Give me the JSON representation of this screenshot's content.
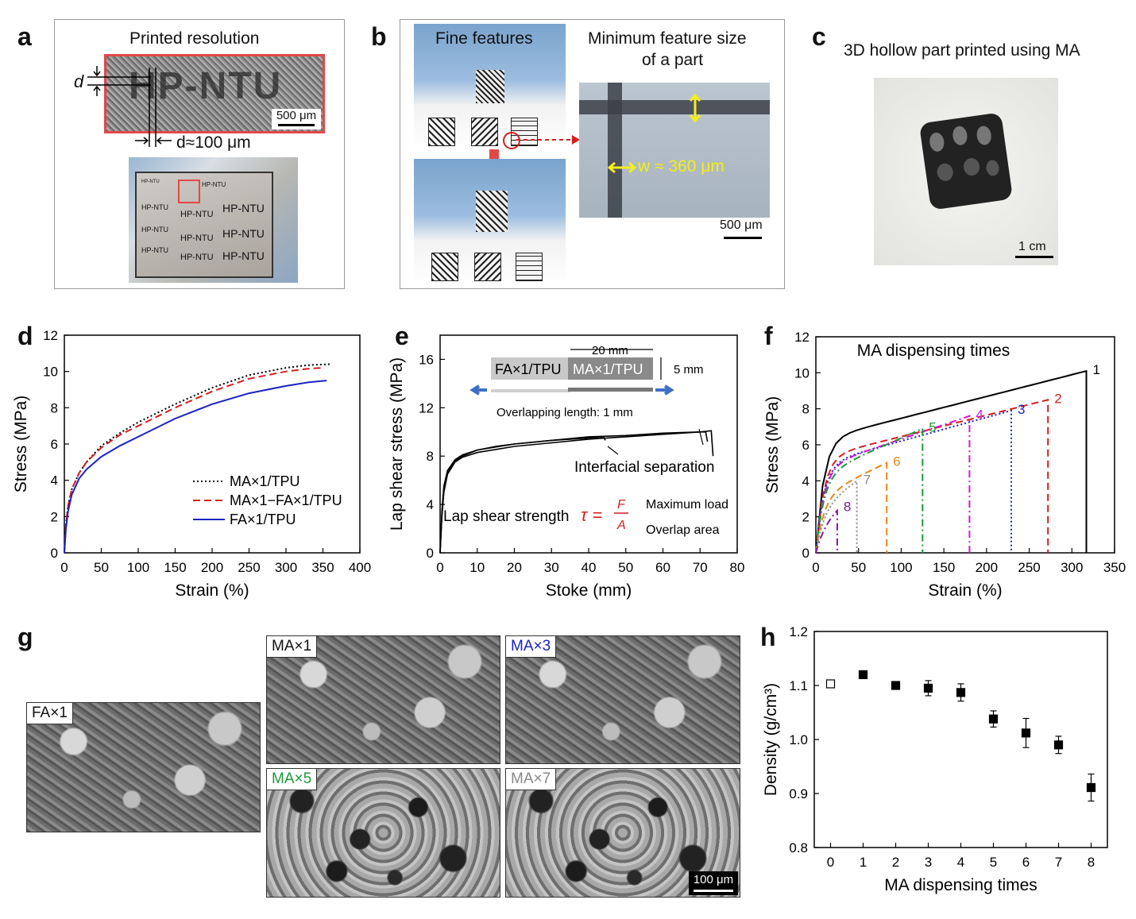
{
  "panel_letters": {
    "a": "a",
    "b": "b",
    "c": "c",
    "d": "d",
    "e": "e",
    "f": "f",
    "g": "g",
    "h": "h"
  },
  "panel_a": {
    "title": "Printed resolution",
    "d_label": "d",
    "scale_bar": "500 μm",
    "d_eq": "d≈100 μm",
    "print_text": "HP-NTU",
    "card_texts": [
      "HP-NTU",
      "HP-NTU",
      "HP-NTU",
      "HP-NTU",
      "HP-NTU",
      "HP-NTU",
      "HP-NTU",
      "HP-NTU",
      "HP-NTU",
      "HP-NTU",
      "HP-NTU"
    ]
  },
  "panel_b": {
    "fine_features": "Fine features",
    "min_feature_1": "Minimum feature size",
    "min_feature_2": "of a part",
    "w_label": "w ≈ 360 μm",
    "scale_bar": "500 μm"
  },
  "panel_c": {
    "title": "3D hollow part printed using MA",
    "scale_bar": "1 cm"
  },
  "panel_g": {
    "labels": [
      "FA×1",
      "MA×1",
      "MA×3",
      "MA×5",
      "MA×7"
    ],
    "scale_bar": "100 μm"
  },
  "colors": {
    "red": "#d42020",
    "blue": "#1a22c4",
    "green": "#1a9a3a",
    "magenta": "#d418d4",
    "orange": "#e8861a",
    "gray": "#8a8a8a",
    "purple": "#7a1a9a",
    "yellow": "#f5ee1a"
  },
  "chart_data": [
    {
      "id": "d",
      "type": "line",
      "xlabel": "Strain (%)",
      "ylabel": "Stress (MPa)",
      "xlim": [
        0,
        400
      ],
      "ylim": [
        0,
        12
      ],
      "xticks": [
        0,
        50,
        100,
        150,
        200,
        250,
        300,
        350,
        400
      ],
      "yticks": [
        0,
        2,
        4,
        6,
        8,
        10,
        12
      ],
      "legend": "bottom-right",
      "series": [
        {
          "name": "MA×1/TPU",
          "style": "dotted",
          "color": "#000000",
          "x": [
            0,
            2,
            5,
            10,
            20,
            30,
            50,
            75,
            100,
            150,
            200,
            250,
            300,
            330,
            360
          ],
          "y": [
            0,
            1.5,
            2.6,
            3.5,
            4.4,
            5.0,
            5.9,
            6.6,
            7.2,
            8.2,
            9.1,
            9.8,
            10.2,
            10.35,
            10.4
          ]
        },
        {
          "name": "MA×1−FA×1/TPU",
          "style": "dashed",
          "color": "#d42020",
          "x": [
            0,
            2,
            5,
            10,
            20,
            30,
            50,
            75,
            100,
            150,
            200,
            250,
            300,
            330,
            350
          ],
          "y": [
            0,
            1.5,
            2.6,
            3.5,
            4.4,
            5.0,
            5.8,
            6.5,
            7.0,
            8.0,
            8.9,
            9.6,
            10.0,
            10.15,
            10.2
          ]
        },
        {
          "name": "FA×1/TPU",
          "style": "solid",
          "color": "#1a22c4",
          "x": [
            0,
            2,
            5,
            10,
            20,
            30,
            50,
            75,
            100,
            150,
            200,
            250,
            300,
            330,
            355
          ],
          "y": [
            0,
            1.3,
            2.3,
            3.2,
            4.1,
            4.6,
            5.3,
            5.9,
            6.4,
            7.4,
            8.2,
            8.8,
            9.2,
            9.4,
            9.5
          ]
        }
      ]
    },
    {
      "id": "e",
      "type": "line",
      "xlabel": "Stoke (mm)",
      "ylabel": "Lap shear stress (MPa)",
      "xlim": [
        0,
        80
      ],
      "ylim": [
        0,
        18
      ],
      "xticks": [
        0,
        10,
        20,
        30,
        40,
        50,
        60,
        70,
        80
      ],
      "yticks": [
        0,
        4,
        8,
        12,
        16
      ],
      "annotations": {
        "fa": "FA×1/TPU",
        "ma": "MA×1/TPU",
        "len20": "20 mm",
        "len5": "5 mm",
        "overlap": "Overlapping length: 1 mm",
        "separation": "Interfacial separation",
        "strength": "Lap shear strength",
        "tau": "τ =",
        "F": "F",
        "A": "A",
        "max_load": "Maximum load",
        "overlap_area": "Overlap area"
      },
      "series": [
        {
          "x": [
            0,
            0.5,
            1,
            2,
            4,
            6,
            10,
            15,
            20,
            30,
            40,
            44,
            44.5
          ],
          "y": [
            0,
            3.5,
            5.5,
            6.8,
            7.7,
            8.1,
            8.5,
            8.8,
            9.0,
            9.3,
            9.5,
            9.6,
            9.3
          ]
        },
        {
          "x": [
            0,
            0.5,
            1,
            2,
            4,
            6,
            10,
            20,
            30,
            40,
            50,
            60,
            70,
            73,
            73.5
          ],
          "y": [
            0,
            3.0,
            5.0,
            6.5,
            7.5,
            7.9,
            8.3,
            8.8,
            9.1,
            9.4,
            9.6,
            9.8,
            10.0,
            10.1,
            8.0
          ]
        },
        {
          "x": [
            0,
            0.5,
            1,
            2,
            4,
            6,
            10,
            20,
            30,
            40,
            50,
            60,
            70,
            71.5,
            72
          ],
          "y": [
            0,
            3.2,
            5.2,
            6.6,
            7.6,
            8.0,
            8.5,
            9.0,
            9.3,
            9.6,
            9.7,
            9.9,
            10.0,
            10.0,
            9.2
          ]
        }
      ]
    },
    {
      "id": "f",
      "type": "line",
      "title": "MA dispensing times",
      "xlabel": "Strain (%)",
      "ylabel": "Stress (MPa)",
      "xlim": [
        0,
        350
      ],
      "ylim": [
        0,
        12
      ],
      "xticks": [
        0,
        50,
        100,
        150,
        200,
        250,
        300,
        350
      ],
      "yticks": [
        0,
        2,
        4,
        6,
        8,
        10,
        12
      ],
      "series": [
        {
          "name": "1",
          "color": "#000000",
          "style": "solid",
          "break": 317,
          "peak": 10.1
        },
        {
          "name": "2",
          "color": "#d42020",
          "style": "dashed",
          "break": 272,
          "peak": 8.5
        },
        {
          "name": "3",
          "color": "#1a22c4",
          "style": "dotted",
          "break": 229,
          "peak": 7.9
        },
        {
          "name": "4",
          "color": "#d418d4",
          "style": "dashdot",
          "break": 180,
          "peak": 7.6
        },
        {
          "name": "5",
          "color": "#1a9a3a",
          "style": "dashdot",
          "break": 125,
          "peak": 6.9
        },
        {
          "name": "6",
          "color": "#e8861a",
          "style": "dashed",
          "break": 83,
          "peak": 5.0
        },
        {
          "name": "7",
          "color": "#8a8a8a",
          "style": "dotted",
          "break": 48,
          "peak": 4.0
        },
        {
          "name": "8",
          "color": "#7a1a9a",
          "style": "dashdot",
          "break": 25,
          "peak": 2.5
        }
      ]
    },
    {
      "id": "h",
      "type": "scatter",
      "xlabel": "MA dispensing times",
      "ylabel": "Density (g/cm³)",
      "xlim": [
        -0.5,
        8.5
      ],
      "ylim": [
        0.8,
        1.2
      ],
      "xticks": [
        0,
        1,
        2,
        3,
        4,
        5,
        6,
        7,
        8
      ],
      "yticks": [
        0.8,
        0.9,
        1.0,
        1.1,
        1.2
      ],
      "points": [
        {
          "x": 0,
          "y": 1.103,
          "err": 0.0,
          "filled": false
        },
        {
          "x": 1,
          "y": 1.12,
          "err": 0.004,
          "filled": true
        },
        {
          "x": 2,
          "y": 1.1,
          "err": 0.005,
          "filled": true
        },
        {
          "x": 3,
          "y": 1.095,
          "err": 0.014,
          "filled": true
        },
        {
          "x": 4,
          "y": 1.087,
          "err": 0.016,
          "filled": true
        },
        {
          "x": 5,
          "y": 1.038,
          "err": 0.015,
          "filled": true
        },
        {
          "x": 6,
          "y": 1.012,
          "err": 0.027,
          "filled": true
        },
        {
          "x": 7,
          "y": 0.99,
          "err": 0.016,
          "filled": true
        },
        {
          "x": 8,
          "y": 0.911,
          "err": 0.025,
          "filled": true
        }
      ]
    }
  ]
}
